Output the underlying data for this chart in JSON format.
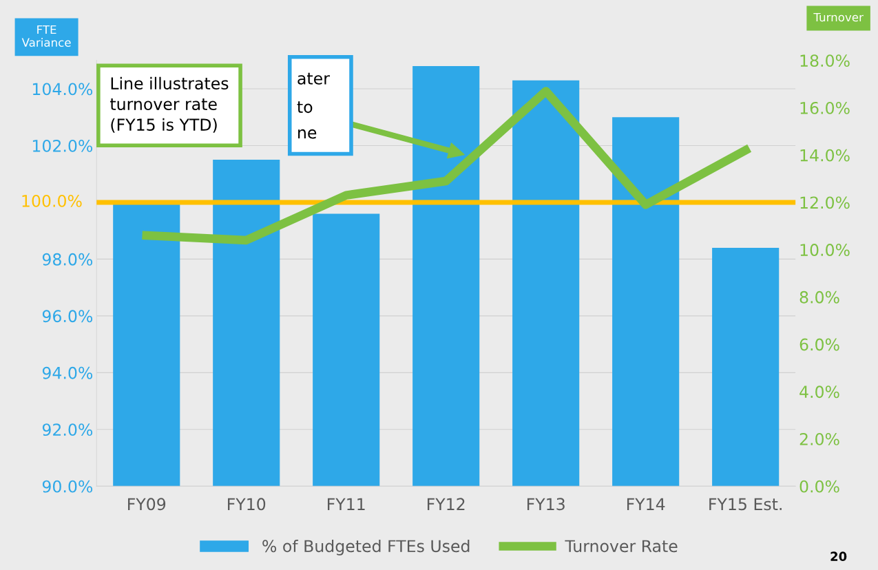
{
  "chart_data": {
    "type": "bar",
    "ylabel": "FTE\nVariance",
    "y2label": "Turnover",
    "categories": [
      "FY09",
      "FY10",
      "FY11",
      "FY12",
      "FY13",
      "FY14",
      "FY15 Est."
    ],
    "series": [
      {
        "name": "% of Budgeted FTEs Used",
        "type": "bar",
        "color": "#2ea8e8",
        "values": [
          100.0,
          101.5,
          99.6,
          104.8,
          104.3,
          103.0,
          98.4
        ]
      },
      {
        "name": "Turnover Rate",
        "type": "line",
        "axis": "y2",
        "color": "#7dc142",
        "values": [
          10.6,
          10.4,
          12.3,
          12.9,
          16.7,
          11.9,
          14.2
        ]
      }
    ],
    "ylim": [
      90,
      105
    ],
    "yticks": [
      {
        "value": 90,
        "label": "90.0%"
      },
      {
        "value": 92,
        "label": "92.0%"
      },
      {
        "value": 94,
        "label": "94.0%"
      },
      {
        "value": 96,
        "label": "96.0%"
      },
      {
        "value": 98,
        "label": "98.0%"
      },
      {
        "value": 100,
        "label": null
      },
      {
        "value": 102,
        "label": "102.0%"
      },
      {
        "value": 104,
        "label": "104.0%"
      }
    ],
    "y2lim": [
      0,
      18
    ],
    "y2ticks": [
      {
        "value": 0,
        "label": "0.0%"
      },
      {
        "value": 2,
        "label": "2.0%"
      },
      {
        "value": 4,
        "label": "4.0%"
      },
      {
        "value": 6,
        "label": "6.0%"
      },
      {
        "value": 8,
        "label": "8.0%"
      },
      {
        "value": 10,
        "label": "10.0%"
      },
      {
        "value": 12,
        "label": "12.0%"
      },
      {
        "value": 14,
        "label": "14.0%"
      },
      {
        "value": 16,
        "label": "16.0%"
      },
      {
        "value": 18,
        "label": "18.0%"
      }
    ],
    "ref_lines": [
      {
        "axis": "y",
        "value": 100,
        "label": "100.0%",
        "color": "#ffc000"
      }
    ],
    "annotations": [
      "Line illustrates\nturnover rate\n(FY15 is YTD)",
      "ater",
      "to",
      "ne",
      "20"
    ],
    "grid": "y",
    "legend": "bottom",
    "line_style": "solid",
    "marker": "none"
  }
}
